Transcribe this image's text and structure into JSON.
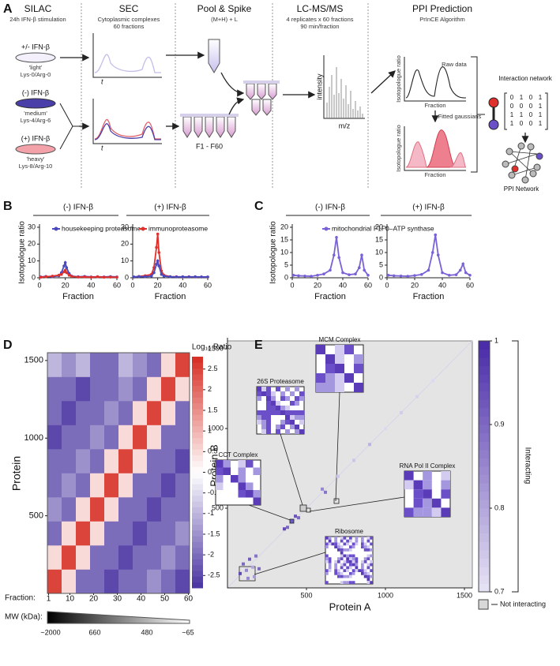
{
  "panel_a": {
    "label": "A",
    "silac": {
      "title": "SILAC",
      "subtitle": "24h IFN-β stimulation",
      "samples": [
        {
          "condition": "+/- IFN-β",
          "label": "'light'",
          "isotopes": "Lys-0/Arg-0"
        },
        {
          "condition": "(-) IFN-β",
          "label": "'medium'",
          "isotopes": "Lys-4/Arg-6"
        },
        {
          "condition": "(+) IFN-β",
          "label": "'heavy'",
          "isotopes": "Lys-8/Arg-10"
        }
      ]
    },
    "sec": {
      "title": "SEC",
      "subtitle": [
        "Cytoplasmic complexes",
        "60 fractions"
      ],
      "time_label": "t"
    },
    "pool": {
      "title": "Pool & Spike",
      "subtitle": "(M+H) + L",
      "tubes_label": "F1 - F60"
    },
    "lcms": {
      "title": "LC-MS/MS",
      "subtitle": [
        "4 replicates x 60 fractions",
        "90 min/fraction"
      ],
      "y_label": "intensity",
      "x_label": "m/z"
    },
    "ppi": {
      "title": "PPI Prediction",
      "subtitle": "PrInCE Algorithm",
      "raw": "Raw data",
      "fitted": "Fitted gaussians",
      "y_label": "Isotopologue ratio",
      "x_label": "Fraction",
      "network_title": "Interaction network",
      "matrix": [
        [
          0,
          1,
          0,
          1
        ],
        [
          0,
          0,
          0,
          1
        ],
        [
          1,
          1,
          0,
          1
        ],
        [
          1,
          0,
          0,
          1
        ]
      ],
      "network_label": "PPI Network"
    }
  },
  "chart_data": [
    {
      "type": "line",
      "panel_label": "B",
      "title": "(-) IFN-β",
      "y_label": "Isotopologue ratio",
      "x_label": "Fraction",
      "x": [
        1,
        5,
        10,
        15,
        17,
        19,
        20,
        21,
        23,
        25,
        30,
        35,
        40,
        45,
        50,
        55,
        60
      ],
      "xlim": [
        0,
        60
      ],
      "xticks": [
        0,
        20,
        40,
        60
      ],
      "ylim": [
        0,
        30
      ],
      "yticks": [
        0,
        10,
        20,
        30
      ],
      "series": [
        {
          "name": "housekeeping proteasome",
          "color": "#4a4ac0",
          "values": [
            0.5,
            0.8,
            0.6,
            1.2,
            3,
            7,
            9,
            6,
            2.5,
            1,
            0.6,
            0.8,
            0.5,
            0.6,
            0.5,
            0.7,
            0.5
          ]
        },
        {
          "name": "immunoproteasome",
          "color": "#e0302c",
          "values": [
            0.3,
            0.6,
            1,
            1.5,
            2,
            3.5,
            4.5,
            3,
            1.5,
            0.8,
            0.4,
            0.5,
            0.3,
            0.6,
            0.3,
            0.4,
            0.3
          ]
        }
      ]
    },
    {
      "type": "line",
      "title": "(+) IFN-β",
      "x_label": "Fraction",
      "x": [
        1,
        5,
        10,
        15,
        17,
        19,
        20,
        21,
        23,
        25,
        30,
        35,
        40,
        45,
        50,
        55,
        60
      ],
      "xlim": [
        0,
        60
      ],
      "xticks": [
        0,
        20,
        40,
        60
      ],
      "ylim": [
        0,
        30
      ],
      "yticks": [
        0,
        10,
        20,
        30
      ],
      "series": [
        {
          "color": "#e0302c",
          "values": [
            0.4,
            0.8,
            1.2,
            2,
            6,
            18,
            26,
            15,
            4,
            1.5,
            0.7,
            0.6,
            0.5,
            0.6,
            0.5,
            0.5,
            0.4
          ]
        },
        {
          "color": "#4a4ac0",
          "values": [
            0.5,
            0.7,
            0.6,
            1,
            3,
            8,
            10,
            7,
            2,
            1,
            0.6,
            0.5,
            0.6,
            0.5,
            0.6,
            0.5,
            0.5
          ]
        }
      ]
    },
    {
      "type": "line",
      "panel_label": "C",
      "title": "(-) IFN-β",
      "y_label": "Isotopologue ratio",
      "x_label": "Fraction",
      "x": [
        1,
        5,
        10,
        15,
        20,
        25,
        30,
        33,
        35,
        37,
        40,
        45,
        50,
        53,
        55,
        57,
        60
      ],
      "xlim": [
        0,
        60
      ],
      "xticks": [
        0,
        20,
        40,
        60
      ],
      "ylim": [
        0,
        20
      ],
      "yticks": [
        0,
        5,
        10,
        15,
        20
      ],
      "series": [
        {
          "name": "mitochondrial F1F0–ATP synthase",
          "color": "#7a62d6",
          "values": [
            1,
            0.8,
            0.7,
            0.6,
            1,
            1.5,
            3,
            9,
            16,
            8,
            2,
            1.2,
            1.5,
            4,
            9,
            3,
            1
          ]
        }
      ]
    },
    {
      "type": "line",
      "title": "(+) IFN-β",
      "x_label": "Fraction",
      "x": [
        1,
        5,
        10,
        15,
        20,
        25,
        30,
        33,
        35,
        37,
        40,
        45,
        50,
        53,
        55,
        57,
        60
      ],
      "xlim": [
        0,
        60
      ],
      "xticks": [
        0,
        20,
        40,
        60
      ],
      "ylim": [
        0,
        20
      ],
      "yticks": [
        0,
        5,
        10,
        15,
        20
      ],
      "series": [
        {
          "color": "#7a62d6",
          "values": [
            1,
            0.8,
            0.7,
            0.6,
            0.9,
            1.3,
            3,
            10,
            17,
            9,
            2,
            1,
            1.2,
            3,
            5.5,
            2,
            1
          ]
        }
      ]
    },
    {
      "type": "heatmap",
      "panel_label": "D",
      "y_label": "Protein",
      "x_label": "Fraction:",
      "xlim": [
        0.5,
        60.5
      ],
      "xticks": [
        1,
        10,
        20,
        30,
        40,
        50,
        60
      ],
      "ylim": [
        0,
        1550
      ],
      "yticks": [
        500,
        1000,
        1500
      ],
      "matrix": [
        [
          2.5,
          0.5,
          -2,
          -2,
          -2.5,
          -2,
          -2,
          -1.5,
          -2,
          -2.5
        ],
        [
          0.5,
          2.5,
          0.5,
          -2,
          -2,
          -2.5,
          -2,
          -2,
          -1.5,
          -2
        ],
        [
          -2,
          0.5,
          2.5,
          0.5,
          -2,
          -2,
          -2.5,
          -2,
          -2,
          -1.5
        ],
        [
          -1.5,
          -2,
          0.5,
          2.5,
          0.5,
          -2,
          -2,
          -2.5,
          -2,
          -2
        ],
        [
          -2,
          -1.5,
          -2,
          0.5,
          2.5,
          0.5,
          -2,
          -2,
          -2.5,
          -2
        ],
        [
          -2,
          -2,
          -1.5,
          -2,
          0.5,
          2.5,
          0.5,
          -2,
          -2,
          -2.5
        ],
        [
          -2.5,
          -2,
          -2,
          -1.5,
          -2,
          0.5,
          2.5,
          0.5,
          -2,
          -2
        ],
        [
          -2,
          -2.5,
          -2,
          -2,
          -1.5,
          -2,
          0.5,
          2.5,
          0.5,
          -2
        ],
        [
          -2,
          -2,
          -2.5,
          -2,
          -2,
          -1.5,
          -2,
          0.5,
          2.5,
          0.5
        ],
        [
          -1,
          -1.5,
          -1,
          -2,
          -2,
          -1,
          -1.5,
          -2,
          0.5,
          2.5
        ]
      ],
      "colorbar": {
        "title": "Log₁₀ Ratio",
        "lim": [
          -2.8,
          2.8
        ],
        "ticks": [
          2.5,
          2,
          1.5,
          1,
          0.5,
          0,
          -0.5,
          -1,
          -1.5,
          -2,
          -2.5
        ]
      },
      "mw": {
        "label": "MW (kDa):",
        "ticks": [
          "~2000",
          "660",
          "480",
          "~65"
        ]
      }
    },
    {
      "type": "scatter",
      "panel_label": "E",
      "x_label": "Protein A",
      "y_label": "Protein B",
      "xlim": [
        0,
        1550
      ],
      "xticks": [
        500,
        1000,
        1500
      ],
      "ylim": [
        0,
        1550
      ],
      "yticks": [
        500,
        1000,
        1500
      ],
      "x": [
        80,
        100,
        120,
        140,
        160,
        180,
        200,
        130,
        170,
        360,
        380,
        430,
        450,
        600,
        620,
        700,
        800,
        900,
        1000,
        1100,
        1200,
        1300
      ],
      "y": [
        90,
        150,
        110,
        180,
        130,
        200,
        120,
        60,
        70,
        370,
        380,
        450,
        440,
        620,
        600,
        700,
        800,
        900,
        1000,
        1100,
        1200,
        1300
      ],
      "values": [
        0.95,
        0.9,
        0.85,
        0.92,
        0.8,
        0.88,
        0.9,
        0.85,
        0.82,
        0.95,
        0.9,
        0.93,
        0.9,
        0.85,
        0.88,
        0.75,
        0.75,
        0.78,
        0.72,
        0.74,
        0.73,
        0.72
      ],
      "colorbar": {
        "title": "Interacting",
        "lim": [
          0.7,
          1
        ],
        "ticks": [
          0.7,
          0.8,
          0.9,
          1
        ]
      },
      "not_label": "Not interacting",
      "insets": [
        "26S Proteasome",
        "MCM Complex",
        "CCT Complex",
        "RNA Pol II Complex",
        "Ribosome"
      ]
    }
  ]
}
